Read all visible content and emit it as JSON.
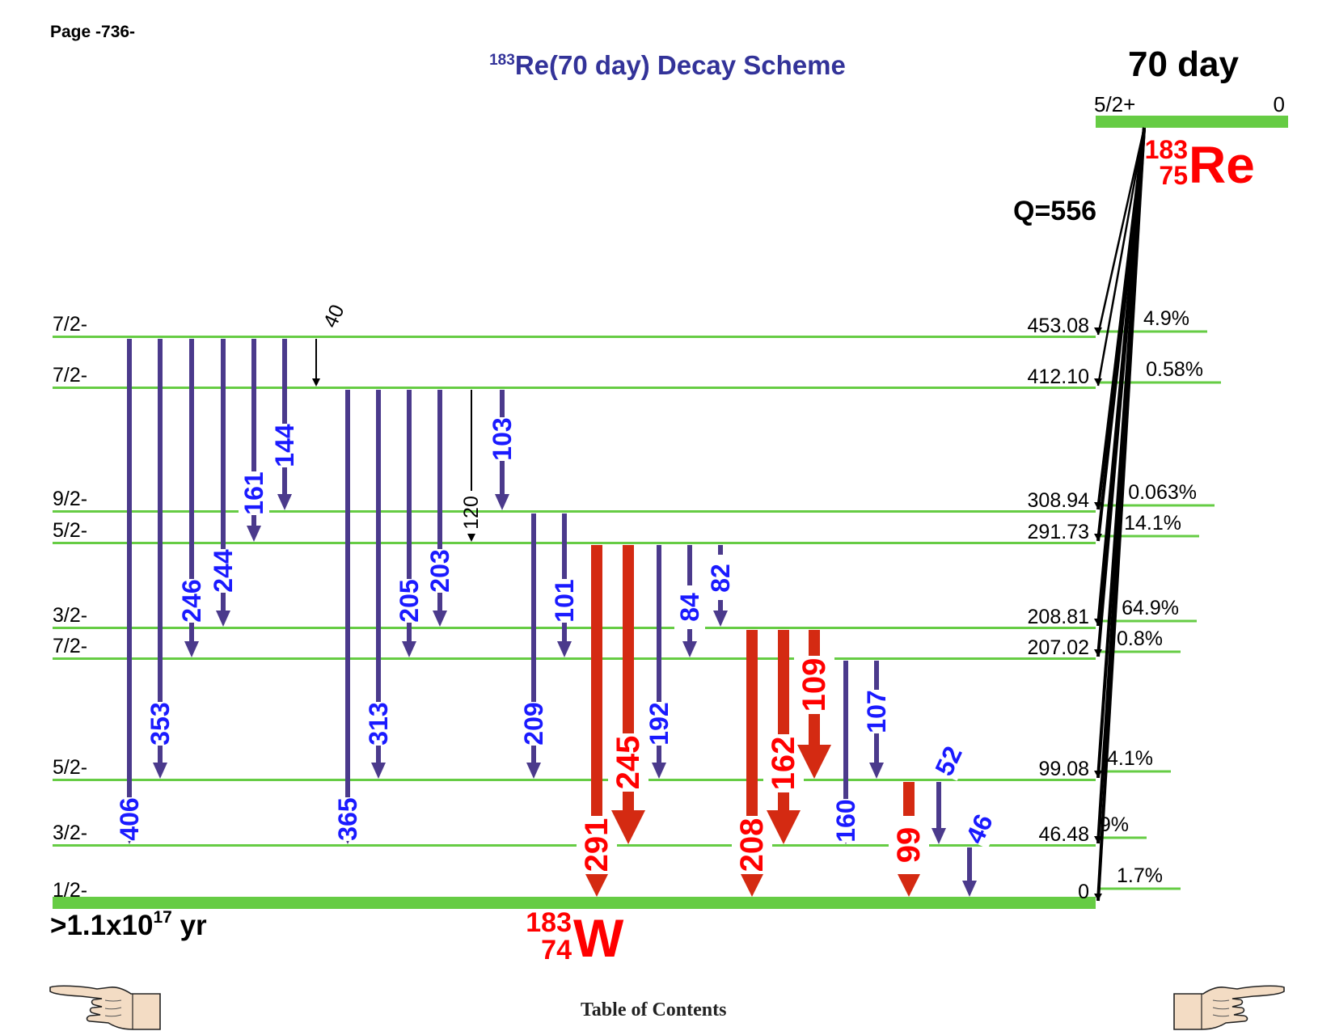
{
  "header": {
    "page_number": "Page -736-",
    "title_mass": "183",
    "title_text": "Re(70 day) Decay Scheme"
  },
  "parent": {
    "half_life": "70 day",
    "spin": "5/2+",
    "energy": "0",
    "mass": "183",
    "z": "75",
    "symbol": "Re",
    "q_value": "Q=556"
  },
  "daughter": {
    "half_life_prefix": ">1.1x10",
    "half_life_exp": "17",
    "half_life_unit": " yr",
    "mass": "183",
    "z": "74",
    "symbol": "W"
  },
  "levels": [
    {
      "spin": "7/2-",
      "energy": "453.08",
      "branch": "4.9%"
    },
    {
      "spin": "7/2-",
      "energy": "412.10",
      "branch": "0.58%"
    },
    {
      "spin": "9/2-",
      "energy": "308.94",
      "branch": "0.063%"
    },
    {
      "spin": "5/2-",
      "energy": "291.73",
      "branch": "14.1%"
    },
    {
      "spin": "3/2-",
      "energy": "208.81",
      "branch": "64.9%"
    },
    {
      "spin": "7/2-",
      "energy": "207.02",
      "branch": "0.8%"
    },
    {
      "spin": "5/2-",
      "energy": "99.08",
      "branch": "4.1%"
    },
    {
      "spin": "3/2-",
      "energy": "46.48",
      "branch": "9%"
    },
    {
      "spin": "1/2-",
      "energy": "0",
      "branch": "1.7%"
    }
  ],
  "transitions": [
    {
      "label": "406",
      "from": 0,
      "to": 7,
      "style": "blue"
    },
    {
      "label": "353",
      "from": 0,
      "to": 6,
      "style": "blue"
    },
    {
      "label": "246",
      "from": 0,
      "to": 5,
      "style": "blue"
    },
    {
      "label": "244",
      "from": 0,
      "to": 4,
      "style": "blue"
    },
    {
      "label": "161",
      "from": 0,
      "to": 3,
      "style": "blue"
    },
    {
      "label": "144",
      "from": 0,
      "to": 2,
      "style": "blue"
    },
    {
      "label": "40",
      "from": 0,
      "to": 1,
      "style": "thin"
    },
    {
      "label": "365",
      "from": 1,
      "to": 7,
      "style": "blue"
    },
    {
      "label": "313",
      "from": 1,
      "to": 6,
      "style": "blue"
    },
    {
      "label": "205",
      "from": 1,
      "to": 5,
      "style": "blue"
    },
    {
      "label": "203",
      "from": 1,
      "to": 4,
      "style": "blue"
    },
    {
      "label": "120",
      "from": 1,
      "to": 3,
      "style": "thin"
    },
    {
      "label": "103",
      "from": 1,
      "to": 2,
      "style": "blue"
    },
    {
      "label": "209",
      "from": 2,
      "to": 6,
      "style": "blue"
    },
    {
      "label": "101",
      "from": 2,
      "to": 5,
      "style": "blue"
    },
    {
      "label": "291",
      "from": 3,
      "to": 8,
      "style": "red"
    },
    {
      "label": "245",
      "from": 3,
      "to": 7,
      "style": "red"
    },
    {
      "label": "192",
      "from": 3,
      "to": 6,
      "style": "blue"
    },
    {
      "label": "84",
      "from": 3,
      "to": 5,
      "style": "blue"
    },
    {
      "label": "82",
      "from": 3,
      "to": 4,
      "style": "blue-dashed"
    },
    {
      "label": "208",
      "from": 4,
      "to": 8,
      "style": "red"
    },
    {
      "label": "162",
      "from": 4,
      "to": 7,
      "style": "red"
    },
    {
      "label": "109",
      "from": 4,
      "to": 6,
      "style": "red"
    },
    {
      "label": "160",
      "from": 5,
      "to": 7,
      "style": "blue"
    },
    {
      "label": "107",
      "from": 5,
      "to": 6,
      "style": "blue"
    },
    {
      "label": "99",
      "from": 6,
      "to": 8,
      "style": "red"
    },
    {
      "label": "52",
      "from": 6,
      "to": 7,
      "style": "blue"
    },
    {
      "label": "46",
      "from": 7,
      "to": 8,
      "style": "blue"
    }
  ],
  "navigation": {
    "toc_label": "Table of Contents",
    "prev_icon": "pointing-hand-left-icon",
    "next_icon": "pointing-hand-right-icon"
  },
  "colors": {
    "level": "#66cc44",
    "blue_arrow": "#4b3a8c",
    "blue_label": "#1a1aff",
    "red_arrow": "#d42a12",
    "red_label": "#ff0000",
    "title": "#333399"
  }
}
